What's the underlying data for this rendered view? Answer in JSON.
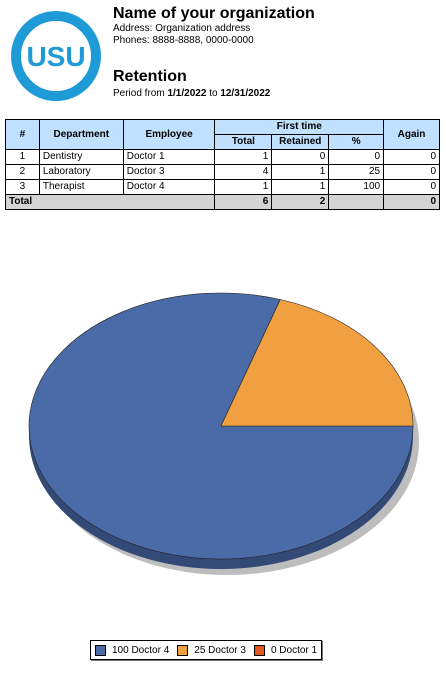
{
  "logo_text": "USU",
  "organization": {
    "name": "Name of your organization",
    "address": "Address: Organization address",
    "phones": "Phones: 8888-8888, 0000-0000"
  },
  "report": {
    "title": "Retention",
    "period_prefix": "Period from",
    "period_from": "1/1/2022",
    "period_to_word": "to",
    "period_to": "12/31/2022"
  },
  "table": {
    "headers": {
      "num": "#",
      "department": "Department",
      "employee": "Employee",
      "first_time": "First time",
      "total": "Total",
      "retained": "Retained",
      "percent": "%",
      "again": "Again"
    },
    "rows": [
      {
        "num": "1",
        "department": "Dentistry",
        "employee": "Doctor 1",
        "total": "1",
        "retained": "0",
        "percent": "0",
        "again": "0"
      },
      {
        "num": "2",
        "department": "Laboratory",
        "employee": "Doctor 3",
        "total": "4",
        "retained": "1",
        "percent": "25",
        "again": "0"
      },
      {
        "num": "3",
        "department": "Therapist",
        "employee": "Doctor 4",
        "total": "1",
        "retained": "1",
        "percent": "100",
        "again": "0"
      }
    ],
    "total_row": {
      "label": "Total",
      "total": "6",
      "retained": "2",
      "percent": "",
      "again": "0"
    }
  },
  "chart_data": {
    "type": "pie",
    "slices": [
      {
        "label": "100 Doctor 4",
        "value": 100,
        "color": "#4a6aa8"
      },
      {
        "label": "25 Doctor 3",
        "value": 25,
        "color": "#f0a040"
      },
      {
        "label": "0 Doctor 1",
        "value": 0,
        "color": "#e05820"
      }
    ]
  },
  "colors": {
    "logo": "#1e9bd7",
    "header_bg": "#bfe0ff",
    "total_bg": "#d4d4d4"
  }
}
